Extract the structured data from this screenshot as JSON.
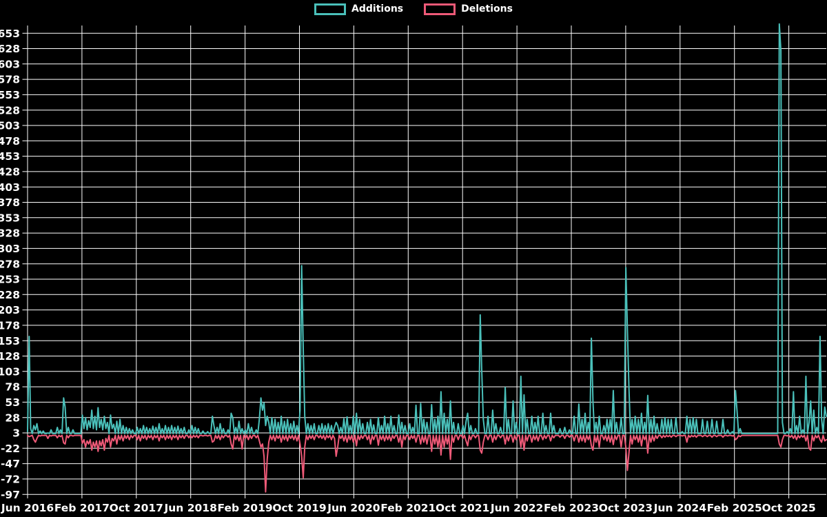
{
  "chart_data": {
    "type": "line",
    "title": "",
    "legend": {
      "position": "top-center",
      "entries": [
        {
          "label": "Additions",
          "color": "#4ac0ba"
        },
        {
          "label": "Deletions",
          "color": "#ef5a78"
        }
      ]
    },
    "x_axis": {
      "tick_labels": [
        "Jun 2016",
        "Feb 2017",
        "Oct 2017",
        "Jun 2018",
        "Feb 2019",
        "Oct 2019",
        "Jun 2020",
        "Feb 2021",
        "Oct 2021",
        "Jun 2022",
        "Feb 2023",
        "Oct 2023",
        "Jun 2024",
        "Feb 2025",
        "Oct 2025"
      ],
      "months_per_tick": 8
    },
    "y_axis": {
      "tick_labels": [
        653,
        628,
        603,
        578,
        553,
        528,
        503,
        478,
        453,
        428,
        403,
        378,
        353,
        328,
        303,
        278,
        253,
        228,
        203,
        178,
        153,
        128,
        103,
        78,
        53,
        28,
        3,
        -22,
        -47,
        -72,
        -97
      ],
      "ylim": [
        -105,
        672
      ],
      "grid": true
    },
    "series_meta": [
      {
        "name": "Additions",
        "color": "#4ac0ba",
        "baseline_value": 2
      },
      {
        "name": "Deletions",
        "color": "#ef5a78",
        "baseline_value": -1
      }
    ],
    "weeks": 511,
    "note": "weekly values; sparse triples [week_index, additions, deletions]; unlisted weeks sit at baseline values",
    "points": [
      [
        0,
        5,
        -1
      ],
      [
        1,
        160,
        -3
      ],
      [
        2,
        10,
        -2
      ],
      [
        4,
        15,
        -8
      ],
      [
        5,
        8,
        -12
      ],
      [
        6,
        18,
        -6
      ],
      [
        8,
        6,
        -2
      ],
      [
        10,
        6,
        -1
      ],
      [
        13,
        3,
        -6
      ],
      [
        15,
        8,
        -2
      ],
      [
        19,
        12,
        -5
      ],
      [
        21,
        8,
        -3
      ],
      [
        23,
        60,
        -13
      ],
      [
        24,
        45,
        -15
      ],
      [
        26,
        12,
        -5
      ],
      [
        29,
        8,
        -2
      ],
      [
        35,
        32,
        -14
      ],
      [
        36,
        10,
        -8
      ],
      [
        37,
        28,
        -20
      ],
      [
        38,
        8,
        -10
      ],
      [
        39,
        23,
        -15
      ],
      [
        40,
        12,
        -8
      ],
      [
        41,
        40,
        -25
      ],
      [
        42,
        10,
        -12
      ],
      [
        43,
        30,
        -20
      ],
      [
        44,
        8,
        -10
      ],
      [
        45,
        44,
        -27
      ],
      [
        46,
        12,
        -10
      ],
      [
        47,
        25,
        -18
      ],
      [
        48,
        8,
        -8
      ],
      [
        49,
        30,
        -25
      ],
      [
        50,
        10,
        -6
      ],
      [
        51,
        20,
        -12
      ],
      [
        53,
        32,
        -20
      ],
      [
        54,
        10,
        -6
      ],
      [
        55,
        17,
        -10
      ],
      [
        57,
        22,
        -15
      ],
      [
        59,
        25,
        -8
      ],
      [
        61,
        15,
        -10
      ],
      [
        63,
        12,
        -6
      ],
      [
        65,
        10,
        -8
      ],
      [
        67,
        8,
        -5
      ],
      [
        70,
        12,
        -8
      ],
      [
        72,
        10,
        -10
      ],
      [
        74,
        15,
        -6
      ],
      [
        76,
        12,
        -8
      ],
      [
        78,
        10,
        -5
      ],
      [
        80,
        14,
        -8
      ],
      [
        82,
        12,
        -5
      ],
      [
        84,
        18,
        -10
      ],
      [
        86,
        10,
        -5
      ],
      [
        88,
        15,
        -8
      ],
      [
        90,
        12,
        -6
      ],
      [
        92,
        15,
        -8
      ],
      [
        94,
        12,
        -5
      ],
      [
        96,
        14,
        -8
      ],
      [
        98,
        10,
        -5
      ],
      [
        100,
        12,
        -6
      ],
      [
        103,
        8,
        -5
      ],
      [
        105,
        15,
        -5
      ],
      [
        107,
        12,
        -4
      ],
      [
        109,
        10,
        -5
      ],
      [
        112,
        6,
        -2
      ],
      [
        115,
        5,
        -2
      ],
      [
        118,
        30,
        -12
      ],
      [
        119,
        15,
        -10
      ],
      [
        121,
        12,
        -6
      ],
      [
        123,
        18,
        -8
      ],
      [
        125,
        10,
        -5
      ],
      [
        128,
        8,
        -4
      ],
      [
        130,
        35,
        -15
      ],
      [
        131,
        28,
        -23
      ],
      [
        133,
        12,
        -8
      ],
      [
        135,
        22,
        -10
      ],
      [
        137,
        10,
        -23
      ],
      [
        139,
        8,
        -6
      ],
      [
        141,
        18,
        -8
      ],
      [
        143,
        12,
        -6
      ],
      [
        146,
        8,
        -5
      ],
      [
        148,
        25,
        -10
      ],
      [
        149,
        60,
        -20
      ],
      [
        150,
        40,
        -15
      ],
      [
        151,
        52,
        -35
      ],
      [
        152,
        15,
        -93
      ],
      [
        153,
        30,
        -40
      ],
      [
        154,
        20,
        -12
      ],
      [
        156,
        28,
        -8
      ],
      [
        158,
        25,
        -10
      ],
      [
        160,
        20,
        -6
      ],
      [
        162,
        30,
        -12
      ],
      [
        164,
        22,
        -8
      ],
      [
        166,
        25,
        -10
      ],
      [
        168,
        18,
        -6
      ],
      [
        170,
        22,
        -8
      ],
      [
        172,
        15,
        -10
      ],
      [
        174,
        40,
        -15
      ],
      [
        175,
        275,
        -35
      ],
      [
        176,
        140,
        -70
      ],
      [
        177,
        30,
        -20
      ],
      [
        179,
        18,
        -8
      ],
      [
        181,
        15,
        -6
      ],
      [
        183,
        18,
        -8
      ],
      [
        186,
        15,
        -5
      ],
      [
        188,
        18,
        -6
      ],
      [
        190,
        15,
        -8
      ],
      [
        192,
        18,
        -5
      ],
      [
        194,
        15,
        -8
      ],
      [
        196,
        12,
        -6
      ],
      [
        197,
        20,
        -35
      ],
      [
        198,
        15,
        -20
      ],
      [
        200,
        12,
        -6
      ],
      [
        202,
        26,
        -10
      ],
      [
        204,
        29,
        -12
      ],
      [
        206,
        15,
        -8
      ],
      [
        208,
        30,
        -12
      ],
      [
        210,
        35,
        -18
      ],
      [
        212,
        25,
        -8
      ],
      [
        214,
        18,
        -6
      ],
      [
        217,
        20,
        -8
      ],
      [
        219,
        25,
        -15
      ],
      [
        221,
        16,
        -8
      ],
      [
        224,
        28,
        -17
      ],
      [
        226,
        15,
        -8
      ],
      [
        228,
        30,
        -10
      ],
      [
        230,
        18,
        -8
      ],
      [
        232,
        30,
        -10
      ],
      [
        234,
        15,
        -6
      ],
      [
        237,
        32,
        -12
      ],
      [
        239,
        20,
        -20
      ],
      [
        241,
        15,
        -8
      ],
      [
        244,
        18,
        -8
      ],
      [
        246,
        12,
        -6
      ],
      [
        248,
        48,
        -12
      ],
      [
        251,
        51,
        -15
      ],
      [
        253,
        25,
        -12
      ],
      [
        255,
        20,
        -15
      ],
      [
        258,
        49,
        -27
      ],
      [
        260,
        25,
        -15
      ],
      [
        262,
        30,
        -20
      ],
      [
        264,
        70,
        -33
      ],
      [
        266,
        35,
        -20
      ],
      [
        268,
        25,
        -15
      ],
      [
        270,
        55,
        -40
      ],
      [
        272,
        20,
        -12
      ],
      [
        275,
        18,
        -8
      ],
      [
        278,
        15,
        -6
      ],
      [
        280,
        22,
        -10
      ],
      [
        281,
        35,
        -18
      ],
      [
        283,
        15,
        -8
      ],
      [
        286,
        10,
        -5
      ],
      [
        289,
        195,
        -25
      ],
      [
        290,
        105,
        -30
      ],
      [
        291,
        25,
        -12
      ],
      [
        294,
        30,
        -8
      ],
      [
        297,
        40,
        -12
      ],
      [
        299,
        18,
        -8
      ],
      [
        302,
        12,
        -5
      ],
      [
        305,
        77,
        -15
      ],
      [
        307,
        25,
        -10
      ],
      [
        310,
        55,
        -12
      ],
      [
        312,
        20,
        -8
      ],
      [
        315,
        95,
        -20
      ],
      [
        317,
        65,
        -25
      ],
      [
        319,
        25,
        -10
      ],
      [
        322,
        30,
        -12
      ],
      [
        324,
        20,
        -8
      ],
      [
        326,
        30,
        -10
      ],
      [
        329,
        35,
        -8
      ],
      [
        331,
        15,
        -6
      ],
      [
        334,
        35,
        -10
      ],
      [
        336,
        15,
        -5
      ],
      [
        340,
        10,
        -4
      ],
      [
        343,
        12,
        -6
      ],
      [
        346,
        8,
        -4
      ],
      [
        349,
        30,
        -10
      ],
      [
        352,
        50,
        -12
      ],
      [
        354,
        25,
        -10
      ],
      [
        356,
        35,
        -12
      ],
      [
        358,
        20,
        -8
      ],
      [
        360,
        157,
        -18
      ],
      [
        361,
        55,
        -25
      ],
      [
        363,
        20,
        -12
      ],
      [
        365,
        30,
        -20
      ],
      [
        368,
        15,
        -8
      ],
      [
        370,
        25,
        -10
      ],
      [
        372,
        25,
        -12
      ],
      [
        374,
        72,
        -16
      ],
      [
        376,
        20,
        -8
      ],
      [
        379,
        28,
        -20
      ],
      [
        382,
        272,
        -20
      ],
      [
        383,
        170,
        -58
      ],
      [
        384,
        77,
        -30
      ],
      [
        386,
        25,
        -15
      ],
      [
        388,
        30,
        -8
      ],
      [
        390,
        25,
        -12
      ],
      [
        392,
        35,
        -18
      ],
      [
        394,
        20,
        -8
      ],
      [
        396,
        64,
        -30
      ],
      [
        398,
        25,
        -12
      ],
      [
        400,
        30,
        -10
      ],
      [
        402,
        18,
        -6
      ],
      [
        405,
        25,
        -5
      ],
      [
        407,
        28,
        -4
      ],
      [
        409,
        25,
        -3
      ],
      [
        411,
        25,
        -4
      ],
      [
        414,
        28,
        -3
      ],
      [
        418,
        5,
        -2
      ],
      [
        421,
        30,
        -12
      ],
      [
        423,
        25,
        -4
      ],
      [
        425,
        28,
        -3
      ],
      [
        427,
        25,
        -4
      ],
      [
        431,
        25,
        -3
      ],
      [
        434,
        22,
        -3
      ],
      [
        437,
        25,
        -4
      ],
      [
        440,
        22,
        -3
      ],
      [
        444,
        25,
        -4
      ],
      [
        447,
        8,
        -2
      ],
      [
        450,
        5,
        -2
      ],
      [
        452,
        72,
        -8
      ],
      [
        453,
        40,
        -6
      ],
      [
        455,
        10,
        -3
      ],
      [
        480,
        668,
        -15
      ],
      [
        481,
        625,
        -20
      ],
      [
        482,
        20,
        -8
      ],
      [
        485,
        5,
        -2
      ],
      [
        487,
        10,
        -4
      ],
      [
        489,
        70,
        -6
      ],
      [
        491,
        15,
        -8
      ],
      [
        493,
        30,
        -5
      ],
      [
        495,
        8,
        -4
      ],
      [
        497,
        95,
        -10
      ],
      [
        499,
        20,
        -22
      ],
      [
        500,
        55,
        -25
      ],
      [
        502,
        40,
        -10
      ],
      [
        504,
        12,
        -5
      ],
      [
        506,
        160,
        -8
      ],
      [
        507,
        25,
        -12
      ],
      [
        509,
        45,
        -10
      ],
      [
        510,
        30,
        -8
      ]
    ]
  }
}
